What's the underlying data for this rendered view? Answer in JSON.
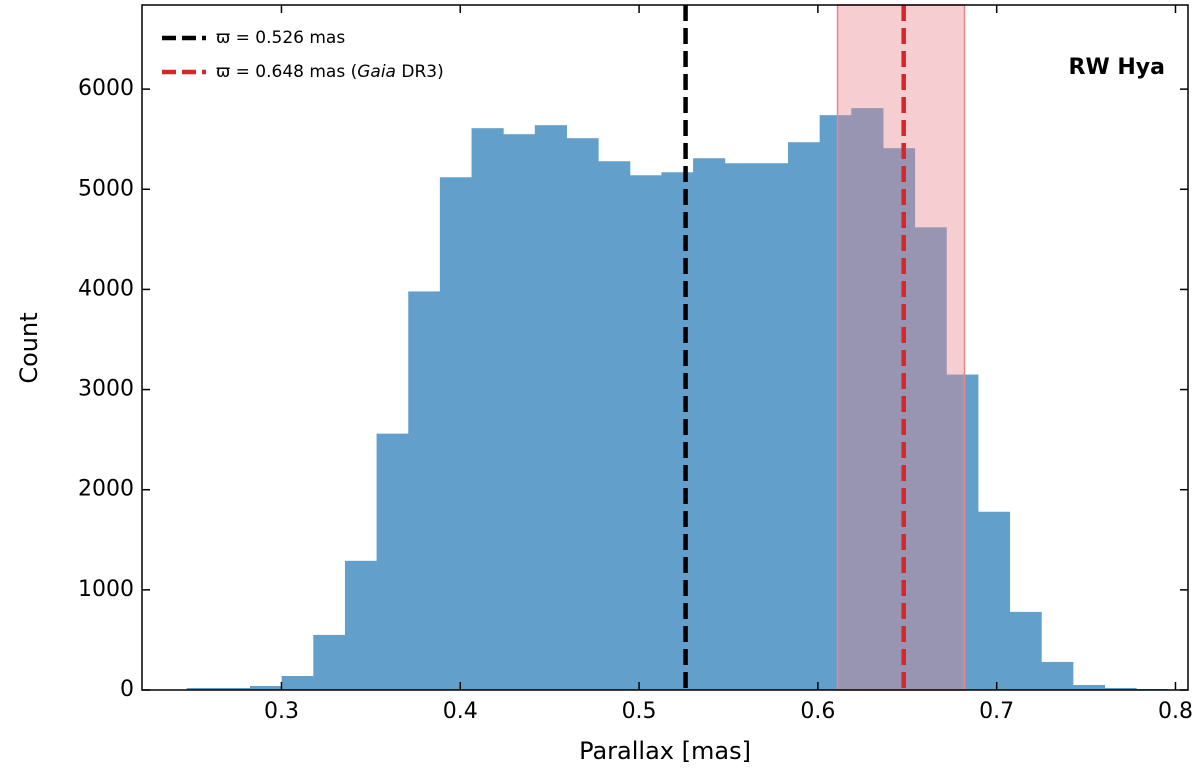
{
  "chart_data": {
    "type": "histogram",
    "xlabel": "Parallax [mas]",
    "ylabel": "Count",
    "annotation": "RW Hya",
    "color": "#62a0cb",
    "bins": [
      0.247,
      0.2647,
      0.2824,
      0.3001,
      0.3178,
      0.3355,
      0.3532,
      0.3709,
      0.3886,
      0.4063,
      0.424,
      0.4417,
      0.4594,
      0.4771,
      0.4948,
      0.5125,
      0.5302,
      0.5479,
      0.5656,
      0.5833,
      0.601,
      0.6187,
      0.6364,
      0.6541,
      0.6718,
      0.6895,
      0.7072,
      0.7249,
      0.7426,
      0.7603,
      0.778,
      0.7957
    ],
    "values": [
      20,
      20,
      40,
      140,
      550,
      1290,
      2560,
      3980,
      5120,
      5610,
      5550,
      5640,
      5510,
      5280,
      5140,
      5170,
      5310,
      5260,
      5260,
      5470,
      5740,
      5810,
      5410,
      4620,
      3150,
      1780,
      780,
      280,
      50,
      20,
      10
    ],
    "xlim": [
      0.222,
      0.807
    ],
    "ylim": [
      0,
      6840
    ],
    "xticks": [
      0.3,
      0.4,
      0.5,
      0.6,
      0.7,
      0.8
    ],
    "yticks": [
      0,
      1000,
      2000,
      3000,
      4000,
      5000,
      6000
    ],
    "span": {
      "from": 0.611,
      "to": 0.682,
      "color": "#e8858b"
    },
    "vlines": [
      {
        "value": 0.526,
        "color": "#000000",
        "label_parts": [
          "ϖ = 0.526 mas"
        ]
      },
      {
        "value": 0.648,
        "color": "#d62728",
        "label_parts": [
          "ϖ = 0.648 mas (",
          "Gaia",
          " DR3)"
        ]
      }
    ],
    "legend": "upper left"
  }
}
